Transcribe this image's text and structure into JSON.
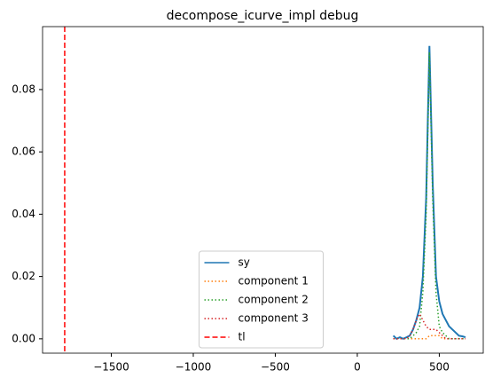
{
  "chart_data": {
    "type": "line",
    "title": "decompose_icurve_impl debug",
    "x": [
      220,
      240,
      260,
      280,
      300,
      320,
      340,
      360,
      380,
      400,
      420,
      440,
      460,
      480,
      500,
      520,
      540,
      560,
      580,
      600,
      620,
      640,
      660
    ],
    "series": [
      {
        "name": "sy",
        "color": "#1f77b4",
        "style": "solid",
        "values": [
          0.001,
          0.0,
          0.0005,
          0.0,
          0.0005,
          0.001,
          0.003,
          0.006,
          0.01,
          0.02,
          0.045,
          0.094,
          0.05,
          0.02,
          0.012,
          0.008,
          0.006,
          0.004,
          0.003,
          0.002,
          0.001,
          0.0008,
          0.0005
        ]
      },
      {
        "name": "component 1",
        "color": "#ff7f0e",
        "style": "dotted",
        "values": [
          0,
          0,
          0,
          0,
          0,
          0,
          0,
          0,
          0,
          0,
          0,
          0.001,
          0.001,
          0.001,
          0.001,
          0,
          0,
          0,
          0,
          0,
          0,
          0,
          0
        ]
      },
      {
        "name": "component 2",
        "color": "#2ca02c",
        "style": "dotted",
        "values": [
          0,
          0,
          0,
          0,
          0,
          0,
          0.001,
          0.002,
          0.004,
          0.015,
          0.04,
          0.092,
          0.045,
          0.015,
          0.004,
          0.002,
          0.001,
          0,
          0,
          0,
          0,
          0,
          0
        ]
      },
      {
        "name": "component 3",
        "color": "#d62728",
        "style": "dotted",
        "values": [
          0,
          0,
          0,
          0,
          0,
          0.001,
          0.003,
          0.006,
          0.008,
          0.006,
          0.004,
          0.003,
          0.003,
          0.003,
          0.002,
          0.001,
          0,
          0,
          0,
          0,
          0,
          0,
          0
        ]
      }
    ],
    "vline": {
      "name": "tl",
      "color": "#ff0000",
      "style": "dashed",
      "value": -1784
    },
    "xlim": [
      -1919,
      768
    ],
    "ylim": [
      -0.0046,
      0.1002
    ],
    "xticks": [
      {
        "value": -1500,
        "label": "−1500"
      },
      {
        "value": -1000,
        "label": "−1000"
      },
      {
        "value": -500,
        "label": "−500"
      },
      0,
      500
    ],
    "yticks": [
      {
        "value": 0,
        "label": "0.00"
      },
      {
        "value": 0.02,
        "label": "0.02"
      },
      {
        "value": 0.04,
        "label": "0.04"
      },
      {
        "value": 0.06,
        "label": "0.06"
      },
      {
        "value": 0.08,
        "label": "0.08"
      }
    ],
    "legend": "lower center"
  }
}
